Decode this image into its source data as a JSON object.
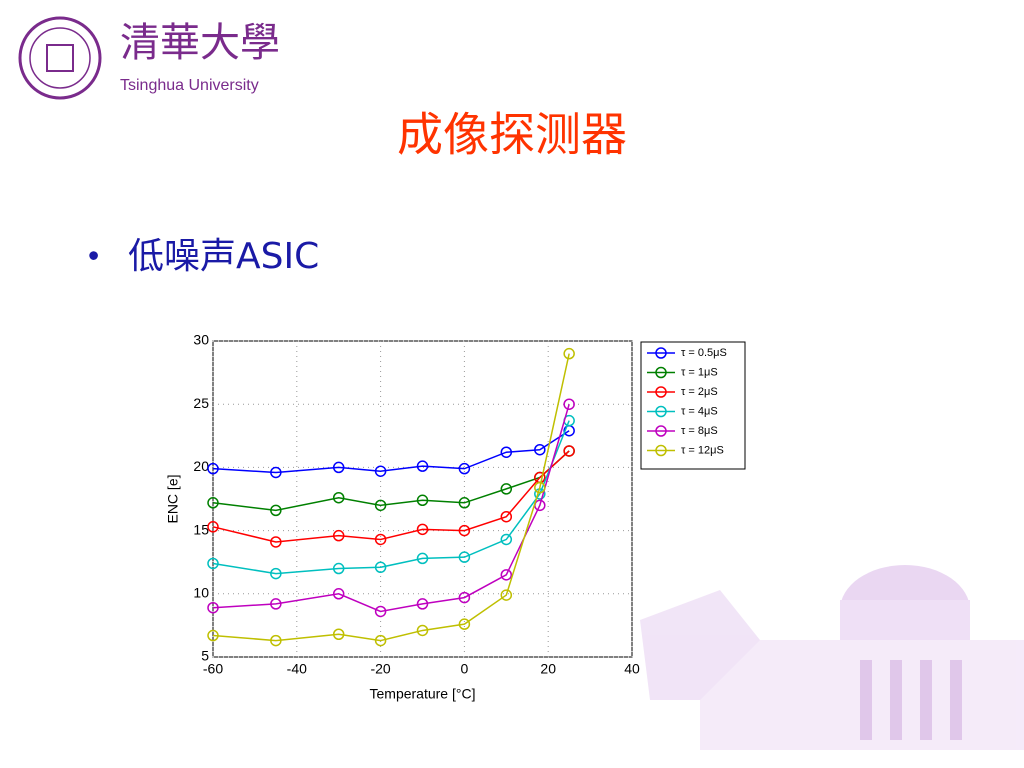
{
  "header": {
    "logo_text": "清華大學",
    "university": "Tsinghua University"
  },
  "title": "成像探测器",
  "bullet": "低噪声ASIC",
  "chart_data": {
    "type": "line",
    "x_label": "Temperature [°C]",
    "y_label": "ENC [e]",
    "x": [
      -60,
      -45,
      -30,
      -20,
      -10,
      0,
      10,
      18,
      25
    ],
    "xlim": [
      -60,
      40
    ],
    "xticks": [
      -60,
      -40,
      -20,
      0,
      20,
      40
    ],
    "ylim": [
      5,
      30
    ],
    "yticks": [
      5,
      10,
      15,
      20,
      25,
      30
    ],
    "grid": true,
    "legend": "outside-right",
    "series": [
      {
        "name": "τ = 0.5μS",
        "color": "#0000ff",
        "values": [
          19.9,
          19.6,
          20.0,
          19.7,
          20.1,
          19.9,
          21.2,
          21.4,
          22.9
        ]
      },
      {
        "name": "τ = 1μS",
        "color": "#008000",
        "values": [
          17.2,
          16.6,
          17.6,
          17.0,
          17.4,
          17.2,
          18.3,
          19.2,
          21.3
        ]
      },
      {
        "name": "τ = 2μS",
        "color": "#ff0000",
        "values": [
          15.3,
          14.1,
          14.6,
          14.3,
          15.1,
          15.0,
          16.1,
          19.2,
          21.3
        ]
      },
      {
        "name": "τ = 4μS",
        "color": "#00bfbf",
        "values": [
          12.4,
          11.6,
          12.0,
          12.1,
          12.8,
          12.9,
          14.3,
          17.9,
          23.7
        ]
      },
      {
        "name": "τ = 8μS",
        "color": "#bf00bf",
        "values": [
          8.9,
          9.2,
          10.0,
          8.6,
          9.2,
          9.7,
          11.5,
          17.0,
          25.0
        ]
      },
      {
        "name": "τ = 12μS",
        "color": "#bfbf00",
        "values": [
          6.7,
          6.3,
          6.8,
          6.3,
          7.1,
          7.6,
          9.9,
          18.4,
          29.0
        ]
      }
    ]
  }
}
